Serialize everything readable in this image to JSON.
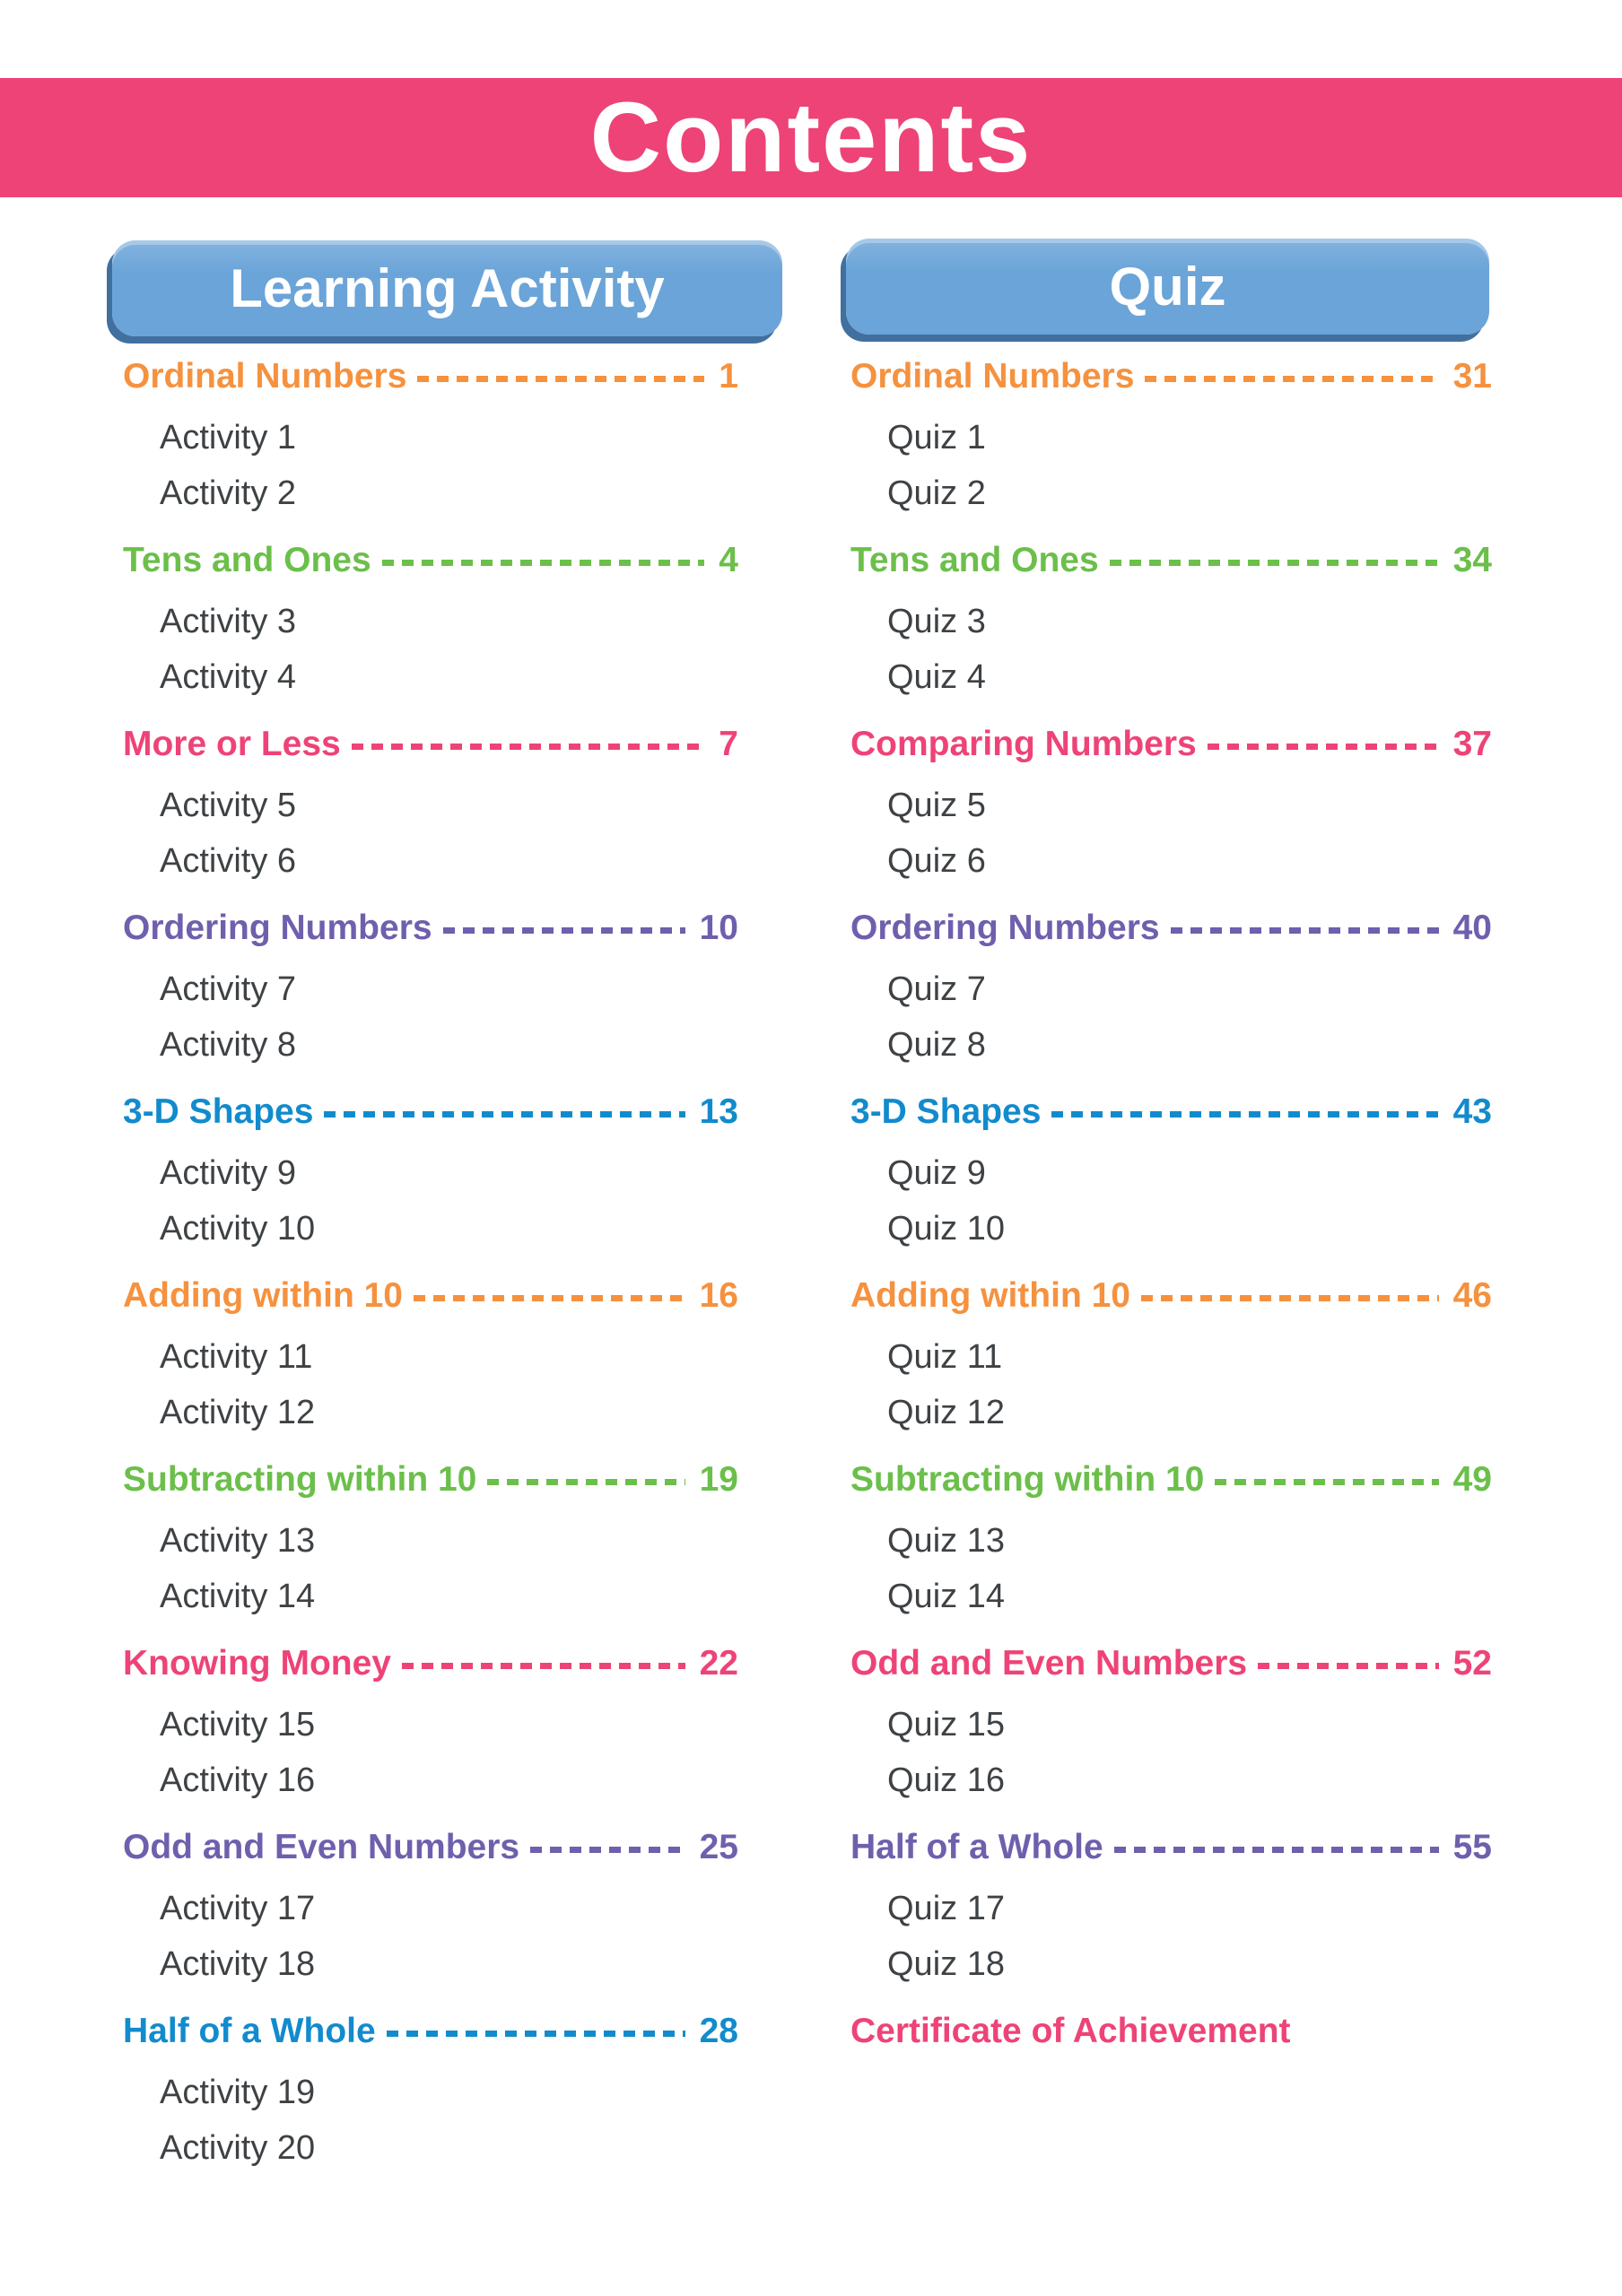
{
  "page": {
    "title": "Contents"
  },
  "colors": {
    "header_bar": "#ee4377",
    "button_fill": "#6aa4d8",
    "button_fill_light": "#84b3e0",
    "button_shadow": "#41709e",
    "button_text": "#ffffff",
    "item_text": "#3e4245",
    "orange": "#f6913e",
    "green": "#6bbf4a",
    "pink": "#ee4377",
    "purple": "#6f5fad",
    "blue": "#128bcd"
  },
  "columns": [
    {
      "id": "learning-activity",
      "header": "Learning Activity",
      "sections": [
        {
          "title": "Ordinal Numbers",
          "page": "1",
          "color": "orange",
          "items": [
            "Activity 1",
            "Activity 2"
          ]
        },
        {
          "title": "Tens and Ones",
          "page": "4",
          "color": "green",
          "items": [
            "Activity 3",
            "Activity 4"
          ]
        },
        {
          "title": "More or Less",
          "page": "7",
          "color": "pink",
          "items": [
            "Activity 5",
            "Activity 6"
          ]
        },
        {
          "title": "Ordering Numbers",
          "page": "10",
          "color": "purple",
          "items": [
            "Activity 7",
            "Activity 8"
          ]
        },
        {
          "title": "3-D Shapes",
          "page": "13",
          "color": "blue",
          "items": [
            "Activity 9",
            "Activity 10"
          ]
        },
        {
          "title": "Adding within 10",
          "page": "16",
          "color": "orange",
          "items": [
            "Activity 11",
            "Activity 12"
          ]
        },
        {
          "title": "Subtracting within 10",
          "page": "19",
          "color": "green",
          "items": [
            "Activity 13",
            "Activity 14"
          ]
        },
        {
          "title": "Knowing Money",
          "page": "22",
          "color": "pink",
          "items": [
            "Activity 15",
            "Activity 16"
          ]
        },
        {
          "title": "Odd and Even Numbers",
          "page": "25",
          "color": "purple",
          "items": [
            "Activity 17",
            "Activity 18"
          ]
        },
        {
          "title": "Half of a Whole",
          "page": "28",
          "color": "blue",
          "items": [
            "Activity 19",
            "Activity 20"
          ]
        }
      ]
    },
    {
      "id": "quiz",
      "header": "Quiz",
      "sections": [
        {
          "title": "Ordinal Numbers",
          "page": "31",
          "color": "orange",
          "items": [
            "Quiz 1",
            "Quiz 2"
          ]
        },
        {
          "title": "Tens and Ones",
          "page": "34",
          "color": "green",
          "items": [
            "Quiz 3",
            "Quiz 4"
          ]
        },
        {
          "title": "Comparing Numbers",
          "page": "37",
          "color": "pink",
          "items": [
            "Quiz 5",
            "Quiz 6"
          ]
        },
        {
          "title": "Ordering Numbers",
          "page": "40",
          "color": "purple",
          "items": [
            "Quiz 7",
            "Quiz 8"
          ]
        },
        {
          "title": "3-D Shapes",
          "page": "43",
          "color": "blue",
          "items": [
            "Quiz 9",
            "Quiz 10"
          ]
        },
        {
          "title": "Adding within 10",
          "page": "46",
          "color": "orange",
          "items": [
            "Quiz 11",
            "Quiz 12"
          ]
        },
        {
          "title": "Subtracting within 10",
          "page": "49",
          "color": "green",
          "items": [
            "Quiz 13",
            "Quiz 14"
          ]
        },
        {
          "title": "Odd and Even Numbers",
          "page": "52",
          "color": "pink",
          "items": [
            "Quiz 15",
            "Quiz 16"
          ]
        },
        {
          "title": "Half of a Whole",
          "page": "55",
          "color": "purple",
          "items": [
            "Quiz 17",
            "Quiz 18"
          ]
        },
        {
          "title": "Certificate of Achievement",
          "page": null,
          "color": "pink",
          "items": []
        }
      ]
    }
  ]
}
